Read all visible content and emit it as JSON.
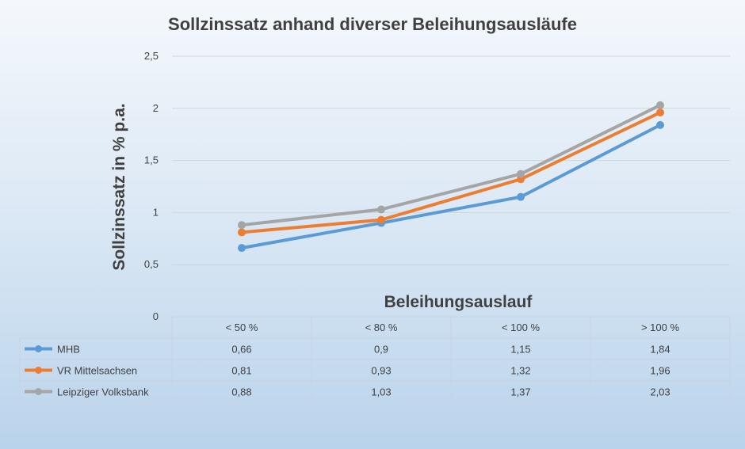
{
  "chart_data": {
    "type": "line",
    "title": "Sollzinssatz anhand diverser Beleihungsausläufe",
    "xlabel": "Beleihungsauslauf",
    "ylabel": "Sollzinssatz in % p.a.",
    "categories": [
      "< 50 %",
      "< 80 %",
      "< 100 %",
      "> 100 %"
    ],
    "ylim": [
      0,
      2.5
    ],
    "yticks": [
      0,
      0.5,
      1,
      1.5,
      2,
      2.5
    ],
    "ytick_labels": [
      "0",
      "0,5",
      "1",
      "1,5",
      "2",
      "2,5"
    ],
    "grid": true,
    "legend": "data-table",
    "series": [
      {
        "name": "MHB",
        "color": "#5b9bd5",
        "values": [
          0.66,
          0.9,
          1.15,
          1.84
        ],
        "labels": [
          "0,66",
          "0,9",
          "1,15",
          "1,84"
        ]
      },
      {
        "name": "VR Mittelsachsen",
        "color": "#ed7d31",
        "values": [
          0.81,
          0.93,
          1.32,
          1.96
        ],
        "labels": [
          "0,81",
          "0,93",
          "1,32",
          "1,96"
        ]
      },
      {
        "name": "Leipziger Volksbank",
        "color": "#a5a5a5",
        "values": [
          0.88,
          1.03,
          1.37,
          2.03
        ],
        "labels": [
          "0,88",
          "1,03",
          "1,37",
          "2,03"
        ]
      }
    ]
  }
}
